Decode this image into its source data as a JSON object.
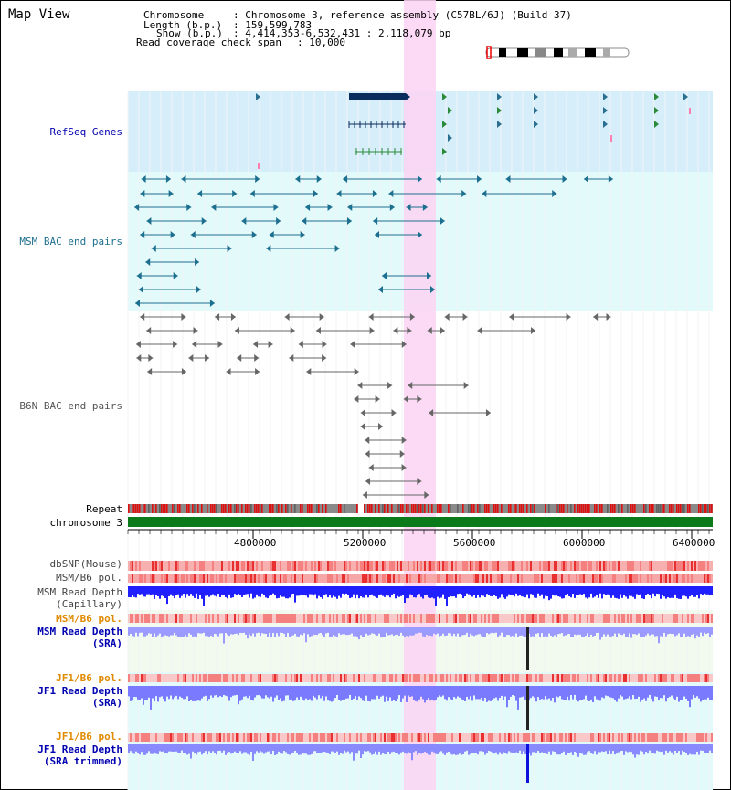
{
  "view_title": "Map View",
  "info": {
    "chromosome_key": "Chromosome",
    "chromosome_val": ": Chromosome 3, reference assembly (C57BL/6J) (Build 37)",
    "length_key": "Length (b.p.)",
    "length_val": ": 159,599,783",
    "show_key": "Show (b.p.)",
    "show_val": ": 4,414,353-6,532,431 : 2,118,079 bp",
    "coverage_key": "Read coverage check span",
    "coverage_val": ": 10,000"
  },
  "tracks": {
    "refseq": "RefSeq Genes",
    "msm_bac": "MSM BAC end pairs",
    "b6n_bac": "B6N BAC end pairs",
    "repeat": "Repeat",
    "chromosome": "chromosome 3",
    "dbsnp": "dbSNP(Mouse)",
    "msm_pol": "MSM/B6 pol.",
    "msm_depth_cap_1": "MSM Read Depth",
    "msm_depth_cap_2": "(Capillary)",
    "msm_pol_sra": "MSM/B6 pol.",
    "msm_depth_sra_1": "MSM Read Depth",
    "msm_depth_sra_2": "(SRA)",
    "jf1_pol": "JF1/B6 pol.",
    "jf1_depth_1": "JF1 Read Depth",
    "jf1_depth_2": "(SRA)",
    "jf1_pol_trim": "JF1/B6 pol.",
    "jf1_trim_1": "JF1 Read Depth",
    "jf1_trim_2": "(SRA trimmed)"
  },
  "axis": {
    "ticks": [
      "4800000",
      "5200000",
      "5600000",
      "6000000",
      "6400000"
    ]
  },
  "colors": {
    "highlight": "#fbd3f3",
    "refseq_bg": "#d6eefa",
    "msm_bg": "#e3fafa",
    "msm_feature": "#1d6f8f",
    "b6n_feature": "#666666",
    "repeat_red": "#e01010",
    "chromosome_green": "#0a7a1a",
    "label_blue": "#0000b0",
    "label_orange": "#e08a00",
    "depth_blue": "#2020ff"
  }
}
